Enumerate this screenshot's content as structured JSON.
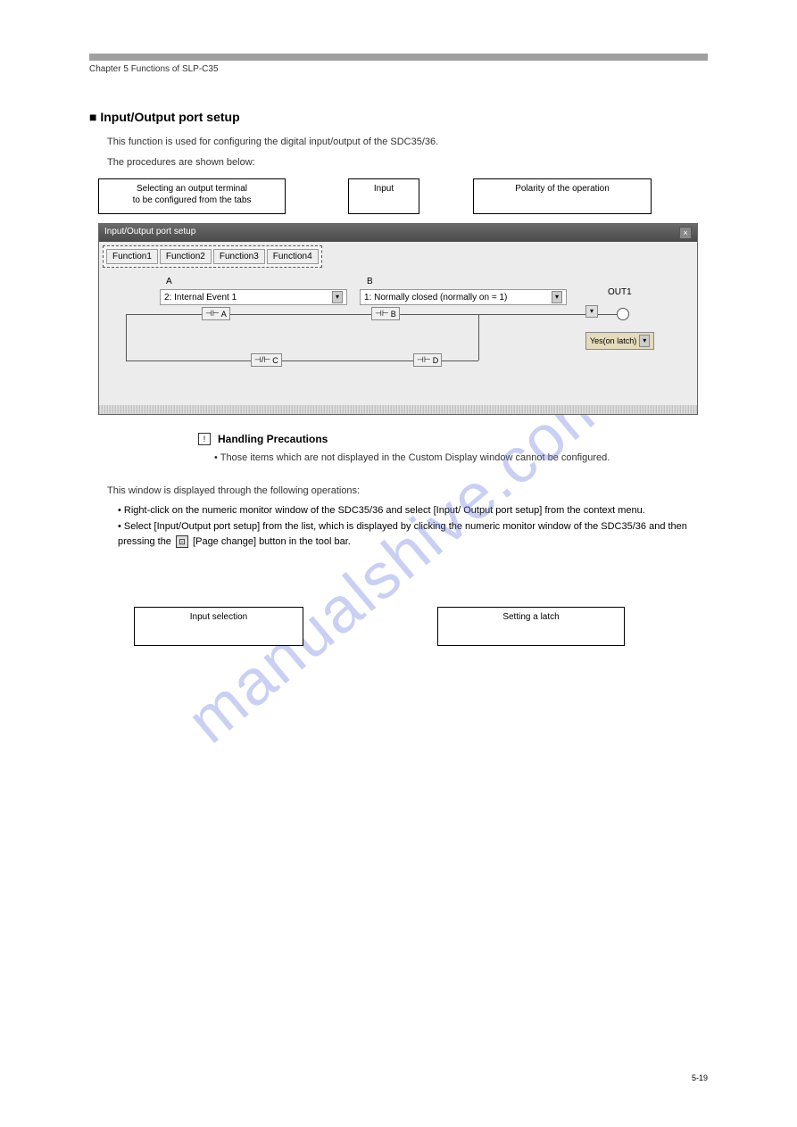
{
  "header": {
    "left": "Chapter 5 Functions of SLP-C35",
    "right": "■ Input/Output port setup"
  },
  "section_title": "■ Input/Output port setup",
  "intro_line1": "This function is used for configuring the digital input/output of the SDC35/36.",
  "intro_line2": "The procedures are shown below:",
  "callouts": {
    "top_left": "Selecting an output terminal\nto be configured from the tabs",
    "top_mid": "Input",
    "top_right": "Polarity of the operation",
    "bot_left": "Input selection",
    "bot_right": "Setting a latch"
  },
  "screenshot": {
    "title": "Input/Output port setup",
    "tabs": [
      "Function1",
      "Function2",
      "Function3",
      "Function4"
    ],
    "label_a": "A",
    "label_b": "B",
    "dropdown_a": "2: Internal Event 1",
    "dropdown_b": "1: Normally closed (normally on = 1)",
    "contacts": [
      "A",
      "B",
      "C",
      "D"
    ],
    "out_label": "OUT1",
    "latch_dd": "Yes(on latch)"
  },
  "handling": {
    "title": "Handling Precautions",
    "bullet": "Those items which are not displayed in the Custom Display window cannot be configured."
  },
  "steps_title": "This window is displayed through the following operations:",
  "steps": [
    "Right-click on the numeric monitor window of the SDC35/36 and select [Input/ Output port setup] from the context menu.",
    "Select [Input/Output port setup] from the list, which is displayed by clicking the numeric monitor window of the SDC35/36 and then pressing the [Page change] button in the tool bar."
  ],
  "step_icon_label": "Page change",
  "footer": {
    "left": "",
    "right": "5-19"
  },
  "watermark": "manualshive.com",
  "colors": {
    "header_line": "#a0a0a0",
    "text": "#333333",
    "watermark": "rgba(100,120,220,0.35)"
  }
}
